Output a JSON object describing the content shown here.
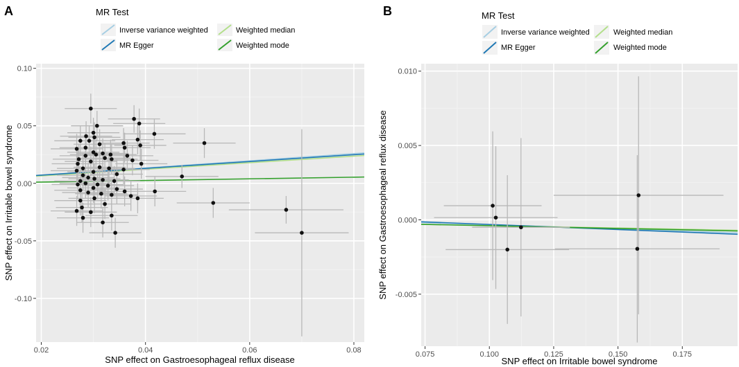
{
  "colors": {
    "panel_bg": "#ebebeb",
    "grid_major": "#ffffff",
    "grid_minor": "#f2f2f2",
    "error_bar": "#b8b8b8",
    "point": "#111111",
    "ivw": "#a6cee3",
    "egger": "#1f78b4",
    "wmedian": "#b2df8a",
    "wmode": "#33a02c",
    "axis_text": "#4d4d4d",
    "label_text": "#000000"
  },
  "chart_data": [
    {
      "type": "scatter",
      "panel_label": "A",
      "legend_title": "MR Test",
      "legend_entries": [
        {
          "label": "Inverse variance weighted",
          "color_key": "ivw"
        },
        {
          "label": "Weighted median",
          "color_key": "wmedian"
        },
        {
          "label": "MR Egger",
          "color_key": "egger"
        },
        {
          "label": "Weighted mode",
          "color_key": "wmode"
        }
      ],
      "xlabel": "SNP effect on Gastroesophageal reflux disease",
      "ylabel": "SNP effect on Irritable bowel syndrome",
      "xlim": [
        0.019,
        0.082
      ],
      "ylim": [
        -0.138,
        0.104
      ],
      "x_ticks": [
        0.02,
        0.04,
        0.06,
        0.08
      ],
      "x_tick_labels": [
        "0.02",
        "0.04",
        "0.06",
        "0.08"
      ],
      "y_ticks": [
        -0.1,
        -0.05,
        0.0,
        0.05,
        0.1
      ],
      "y_tick_labels": [
        "-0.10",
        "-0.05",
        "0.00",
        "0.05",
        "0.10"
      ],
      "lines": [
        {
          "name": "Inverse variance weighted",
          "color_key": "ivw",
          "x": [
            0.019,
            0.082
          ],
          "y": [
            0.0068,
            0.0265
          ]
        },
        {
          "name": "Weighted median",
          "color_key": "wmedian",
          "x": [
            0.019,
            0.082
          ],
          "y": [
            0.0062,
            0.0242
          ]
        },
        {
          "name": "MR Egger",
          "color_key": "egger",
          "x": [
            0.019,
            0.082
          ],
          "y": [
            0.0068,
            0.0255
          ]
        },
        {
          "name": "Weighted mode",
          "color_key": "wmode",
          "x": [
            0.019,
            0.082
          ],
          "y": [
            0.001,
            0.0055
          ]
        }
      ],
      "points": [
        {
          "x": 0.0295,
          "y": 0.065,
          "xe": 0.005,
          "ye": 0.013
        },
        {
          "x": 0.0378,
          "y": 0.056,
          "xe": 0.005,
          "ye": 0.012
        },
        {
          "x": 0.0388,
          "y": 0.052,
          "xe": 0.005,
          "ye": 0.013
        },
        {
          "x": 0.0307,
          "y": 0.05,
          "xe": 0.005,
          "ye": 0.013
        },
        {
          "x": 0.03,
          "y": 0.044,
          "xe": 0.005,
          "ye": 0.013
        },
        {
          "x": 0.0417,
          "y": 0.043,
          "xe": 0.006,
          "ye": 0.013
        },
        {
          "x": 0.0286,
          "y": 0.041,
          "xe": 0.005,
          "ye": 0.013
        },
        {
          "x": 0.0302,
          "y": 0.04,
          "xe": 0.005,
          "ye": 0.013
        },
        {
          "x": 0.0385,
          "y": 0.038,
          "xe": 0.005,
          "ye": 0.013
        },
        {
          "x": 0.0275,
          "y": 0.037,
          "xe": 0.005,
          "ye": 0.013
        },
        {
          "x": 0.0292,
          "y": 0.037,
          "xe": 0.005,
          "ye": 0.013
        },
        {
          "x": 0.0513,
          "y": 0.035,
          "xe": 0.006,
          "ye": 0.013
        },
        {
          "x": 0.0358,
          "y": 0.035,
          "xe": 0.005,
          "ye": 0.013
        },
        {
          "x": 0.0312,
          "y": 0.034,
          "xe": 0.005,
          "ye": 0.013
        },
        {
          "x": 0.0268,
          "y": 0.03,
          "xe": 0.005,
          "ye": 0.013
        },
        {
          "x": 0.039,
          "y": 0.033,
          "xe": 0.005,
          "ye": 0.013
        },
        {
          "x": 0.036,
          "y": 0.031,
          "xe": 0.005,
          "ye": 0.013
        },
        {
          "x": 0.0285,
          "y": 0.031,
          "xe": 0.005,
          "ye": 0.013
        },
        {
          "x": 0.03,
          "y": 0.027,
          "xe": 0.005,
          "ye": 0.013
        },
        {
          "x": 0.0318,
          "y": 0.026,
          "xe": 0.005,
          "ye": 0.013
        },
        {
          "x": 0.0333,
          "y": 0.025,
          "xe": 0.005,
          "ye": 0.013
        },
        {
          "x": 0.0305,
          "y": 0.025,
          "xe": 0.005,
          "ye": 0.013
        },
        {
          "x": 0.0285,
          "y": 0.024,
          "xe": 0.005,
          "ye": 0.013
        },
        {
          "x": 0.0365,
          "y": 0.024,
          "xe": 0.005,
          "ye": 0.013
        },
        {
          "x": 0.0335,
          "y": 0.021,
          "xe": 0.005,
          "ye": 0.013
        },
        {
          "x": 0.0322,
          "y": 0.022,
          "xe": 0.005,
          "ye": 0.013
        },
        {
          "x": 0.0272,
          "y": 0.021,
          "xe": 0.005,
          "ye": 0.013
        },
        {
          "x": 0.0375,
          "y": 0.02,
          "xe": 0.005,
          "ye": 0.013
        },
        {
          "x": 0.0295,
          "y": 0.019,
          "xe": 0.005,
          "ye": 0.013
        },
        {
          "x": 0.0392,
          "y": 0.017,
          "xe": 0.005,
          "ye": 0.013
        },
        {
          "x": 0.027,
          "y": 0.017,
          "xe": 0.005,
          "ye": 0.013
        },
        {
          "x": 0.028,
          "y": 0.013,
          "xe": 0.005,
          "ye": 0.013
        },
        {
          "x": 0.0312,
          "y": 0.014,
          "xe": 0.005,
          "ye": 0.013
        },
        {
          "x": 0.033,
          "y": 0.013,
          "xe": 0.005,
          "ye": 0.013
        },
        {
          "x": 0.0358,
          "y": 0.012,
          "xe": 0.005,
          "ye": 0.013
        },
        {
          "x": 0.0268,
          "y": 0.011,
          "xe": 0.005,
          "ye": 0.013
        },
        {
          "x": 0.03,
          "y": 0.01,
          "xe": 0.005,
          "ye": 0.013
        },
        {
          "x": 0.028,
          "y": 0.007,
          "xe": 0.005,
          "ye": 0.013
        },
        {
          "x": 0.0345,
          "y": 0.008,
          "xe": 0.005,
          "ye": 0.013
        },
        {
          "x": 0.047,
          "y": 0.006,
          "xe": 0.007,
          "ye": 0.01
        },
        {
          "x": 0.029,
          "y": 0.005,
          "xe": 0.005,
          "ye": 0.013
        },
        {
          "x": 0.0302,
          "y": 0.004,
          "xe": 0.005,
          "ye": 0.013
        },
        {
          "x": 0.0318,
          "y": 0.003,
          "xe": 0.005,
          "ye": 0.013
        },
        {
          "x": 0.0275,
          "y": 0.002,
          "xe": 0.005,
          "ye": 0.013
        },
        {
          "x": 0.034,
          "y": 0.002,
          "xe": 0.005,
          "ye": 0.013
        },
        {
          "x": 0.0285,
          "y": 0.0,
          "xe": 0.005,
          "ye": 0.013
        },
        {
          "x": 0.027,
          "y": -0.001,
          "xe": 0.005,
          "ye": 0.013
        },
        {
          "x": 0.0308,
          "y": -0.001,
          "xe": 0.005,
          "ye": 0.013
        },
        {
          "x": 0.0328,
          "y": -0.002,
          "xe": 0.005,
          "ye": 0.013
        },
        {
          "x": 0.03,
          "y": -0.004,
          "xe": 0.005,
          "ye": 0.013
        },
        {
          "x": 0.0345,
          "y": -0.005,
          "xe": 0.005,
          "ye": 0.013
        },
        {
          "x": 0.0275,
          "y": -0.006,
          "xe": 0.005,
          "ye": 0.013
        },
        {
          "x": 0.036,
          "y": -0.007,
          "xe": 0.005,
          "ye": 0.013
        },
        {
          "x": 0.0418,
          "y": -0.007,
          "xe": 0.006,
          "ye": 0.013
        },
        {
          "x": 0.029,
          "y": -0.008,
          "xe": 0.005,
          "ye": 0.013
        },
        {
          "x": 0.0315,
          "y": -0.009,
          "xe": 0.005,
          "ye": 0.013
        },
        {
          "x": 0.0335,
          "y": -0.01,
          "xe": 0.005,
          "ye": 0.013
        },
        {
          "x": 0.0372,
          "y": -0.011,
          "xe": 0.005,
          "ye": 0.013
        },
        {
          "x": 0.0302,
          "y": -0.013,
          "xe": 0.005,
          "ye": 0.013
        },
        {
          "x": 0.0385,
          "y": -0.013,
          "xe": 0.005,
          "ye": 0.013
        },
        {
          "x": 0.0275,
          "y": -0.015,
          "xe": 0.005,
          "ye": 0.013
        },
        {
          "x": 0.053,
          "y": -0.017,
          "xe": 0.007,
          "ye": 0.013
        },
        {
          "x": 0.0322,
          "y": -0.018,
          "xe": 0.005,
          "ye": 0.013
        },
        {
          "x": 0.0278,
          "y": -0.021,
          "xe": 0.005,
          "ye": 0.013
        },
        {
          "x": 0.067,
          "y": -0.023,
          "xe": 0.011,
          "ye": 0.012
        },
        {
          "x": 0.0268,
          "y": -0.024,
          "xe": 0.005,
          "ye": 0.013
        },
        {
          "x": 0.0295,
          "y": -0.025,
          "xe": 0.005,
          "ye": 0.013
        },
        {
          "x": 0.0335,
          "y": -0.028,
          "xe": 0.005,
          "ye": 0.013
        },
        {
          "x": 0.028,
          "y": -0.03,
          "xe": 0.005,
          "ye": 0.013
        },
        {
          "x": 0.0318,
          "y": -0.034,
          "xe": 0.005,
          "ye": 0.013
        },
        {
          "x": 0.0342,
          "y": -0.043,
          "xe": 0.005,
          "ye": 0.013
        },
        {
          "x": 0.07,
          "y": -0.043,
          "xe": 0.009,
          "ye": 0.09
        }
      ]
    },
    {
      "type": "scatter",
      "panel_label": "B",
      "legend_title": "MR Test",
      "legend_entries": [
        {
          "label": "Inverse variance weighted",
          "color_key": "ivw"
        },
        {
          "label": "Weighted median",
          "color_key": "wmedian"
        },
        {
          "label": "MR Egger",
          "color_key": "egger"
        },
        {
          "label": "Weighted mode",
          "color_key": "wmode"
        }
      ],
      "xlabel": "SNP effect on Irritable bowel syndrome",
      "ylabel": "SNP effect on Gastroesophageal reflux disease",
      "xlim": [
        0.0735,
        0.1965
      ],
      "ylim": [
        -0.0085,
        0.0105
      ],
      "x_ticks": [
        0.075,
        0.1,
        0.125,
        0.15,
        0.175
      ],
      "x_tick_labels": [
        "0.075",
        "0.100",
        "0.125",
        "0.150",
        "0.175"
      ],
      "y_ticks": [
        -0.005,
        0.0,
        0.005,
        0.01
      ],
      "y_tick_labels": [
        "-0.005",
        "0.000",
        "0.005",
        "0.010"
      ],
      "lines": [
        {
          "name": "Inverse variance weighted",
          "color_key": "ivw",
          "x": [
            0.0735,
            0.1965
          ],
          "y": [
            -0.00018,
            -0.00088
          ]
        },
        {
          "name": "Weighted median",
          "color_key": "wmedian",
          "x": [
            0.0735,
            0.1965
          ],
          "y": [
            -0.0003,
            -0.0007
          ]
        },
        {
          "name": "MR Egger",
          "color_key": "egger",
          "x": [
            0.0735,
            0.1965
          ],
          "y": [
            -0.00013,
            -0.00097
          ]
        },
        {
          "name": "Weighted mode",
          "color_key": "wmode",
          "x": [
            0.0735,
            0.1965
          ],
          "y": [
            -0.0003,
            -0.00075
          ]
        }
      ],
      "points": [
        {
          "x": 0.1013,
          "y": 0.00095,
          "xe": 0.019,
          "ye": 0.005
        },
        {
          "x": 0.1025,
          "y": 0.00015,
          "xe": 0.024,
          "ye": 0.0048
        },
        {
          "x": 0.1123,
          "y": -0.0005,
          "xe": 0.019,
          "ye": 0.006
        },
        {
          "x": 0.107,
          "y": -0.002,
          "xe": 0.024,
          "ye": 0.005
        },
        {
          "x": 0.158,
          "y": 0.00165,
          "xe": 0.033,
          "ye": 0.008
        },
        {
          "x": 0.1575,
          "y": -0.00195,
          "xe": 0.032,
          "ye": 0.0063
        }
      ]
    }
  ]
}
